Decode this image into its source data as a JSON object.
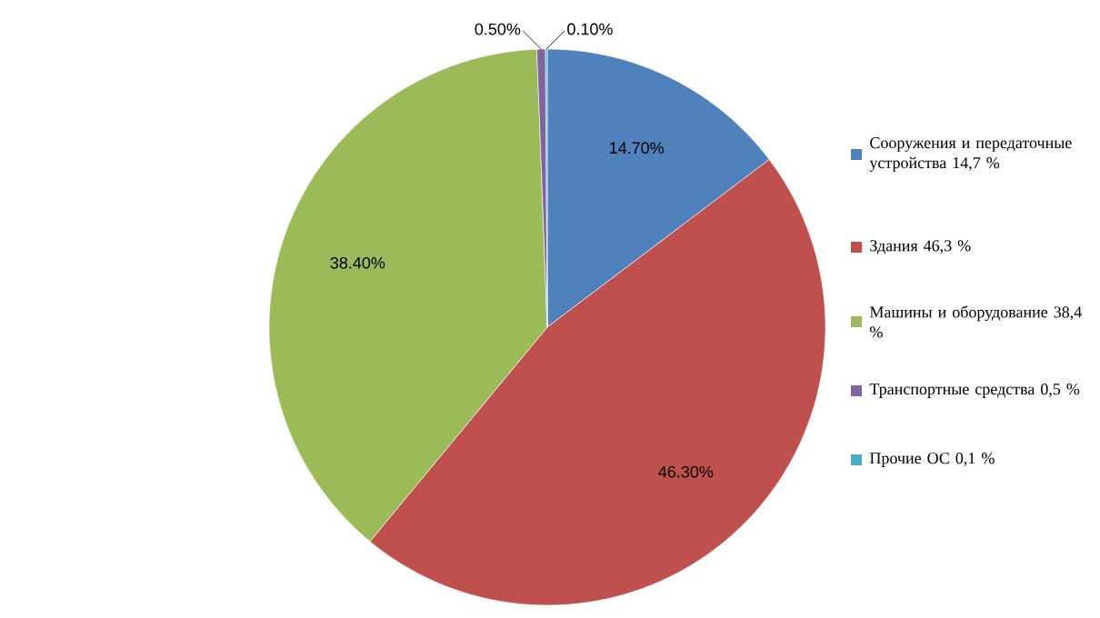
{
  "chart_data": {
    "type": "pie",
    "categories": [
      "Сооружения и передаточные устройства 14,7 %",
      "Здания 46,3 %",
      "Машины и оборудование 38,4 %",
      "Транспортные средства 0,5 %",
      "Прочие ОС 0,1 %"
    ],
    "values": [
      14.7,
      46.3,
      38.4,
      0.5,
      0.1
    ],
    "colors": [
      "#4f81bd",
      "#c0504d",
      "#9bbb59",
      "#8064a2",
      "#4bacc6"
    ],
    "value_labels": [
      "14.70%",
      "46.30%",
      "38.40%",
      "0.50%",
      "0.10%"
    ],
    "legend": "right"
  }
}
